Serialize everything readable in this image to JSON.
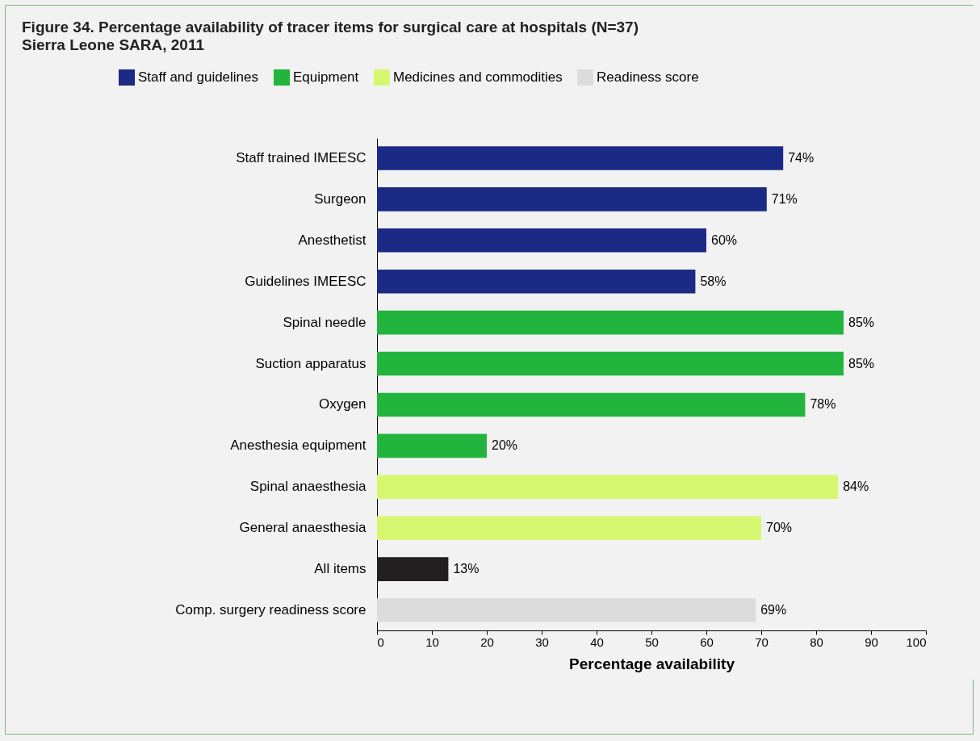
{
  "chart_data": {
    "type": "bar",
    "orientation": "horizontal",
    "title": "Figure 34.     Percentage availability of tracer items for surgical care at hospitals (N=37)",
    "subtitle": "Sierra Leone SARA, 2011",
    "xlabel": "Percentage availability",
    "categories": [
      "Staff trained IMEESC",
      "Surgeon",
      "Anesthetist",
      "Guidelines IMEESC",
      "Spinal needle",
      "Suction apparatus",
      "Oxygen",
      "Anesthesia equipment",
      "Spinal anaesthesia",
      "General anaesthesia",
      "All items",
      "Comp. surgery readiness score"
    ],
    "series": [
      {
        "name": "Staff and guidelines",
        "color": "#1b2a84",
        "values": [
          74,
          71,
          60,
          58,
          null,
          null,
          null,
          null,
          null,
          null,
          null,
          null
        ],
        "value_labels": [
          "74%",
          "71%",
          "60%",
          "58%",
          null,
          null,
          null,
          null,
          null,
          null,
          null,
          null
        ]
      },
      {
        "name": "Equipment",
        "color": "#22b43c",
        "values": [
          null,
          null,
          null,
          null,
          85,
          85,
          78,
          20,
          null,
          null,
          null,
          null
        ],
        "value_labels": [
          null,
          null,
          null,
          null,
          "85%",
          "85%",
          "78%",
          "20%",
          null,
          null,
          null,
          null
        ]
      },
      {
        "name": "Medicines and commodities",
        "color": "#d6f870",
        "values": [
          null,
          null,
          null,
          null,
          null,
          null,
          null,
          null,
          84,
          70,
          null,
          null
        ],
        "value_labels": [
          null,
          null,
          null,
          null,
          null,
          null,
          null,
          null,
          "84%",
          "70%",
          null,
          null
        ]
      },
      {
        "color": "#231f20",
        "values": [
          null,
          null,
          null,
          null,
          null,
          null,
          null,
          null,
          null,
          null,
          13,
          null
        ],
        "value_labels": [
          null,
          null,
          null,
          null,
          null,
          null,
          null,
          null,
          null,
          null,
          "13%",
          null
        ]
      },
      {
        "name": "Readiness score",
        "color": "#dcdcdc",
        "values": [
          null,
          null,
          null,
          null,
          null,
          null,
          null,
          null,
          null,
          null,
          null,
          69
        ],
        "value_labels": [
          null,
          null,
          null,
          null,
          null,
          null,
          null,
          null,
          null,
          null,
          null,
          "69%"
        ]
      }
    ],
    "xlim": [
      0,
      100
    ],
    "xticks": [
      0,
      10,
      20,
      30,
      40,
      50,
      60,
      70,
      80,
      90,
      100
    ],
    "grid": false,
    "legend": "top"
  }
}
